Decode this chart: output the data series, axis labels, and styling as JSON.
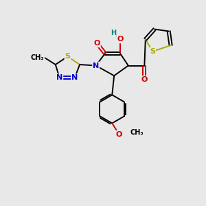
{
  "background_color": "#e8e8e8",
  "figsize": [
    3.0,
    3.0
  ],
  "dpi": 100,
  "colors": {
    "C": "#000000",
    "N": "#0000cc",
    "O": "#cc0000",
    "S": "#aaaa00",
    "H": "#008080"
  },
  "lw": 1.4,
  "fs": 8.0,
  "fs_small": 7.0
}
